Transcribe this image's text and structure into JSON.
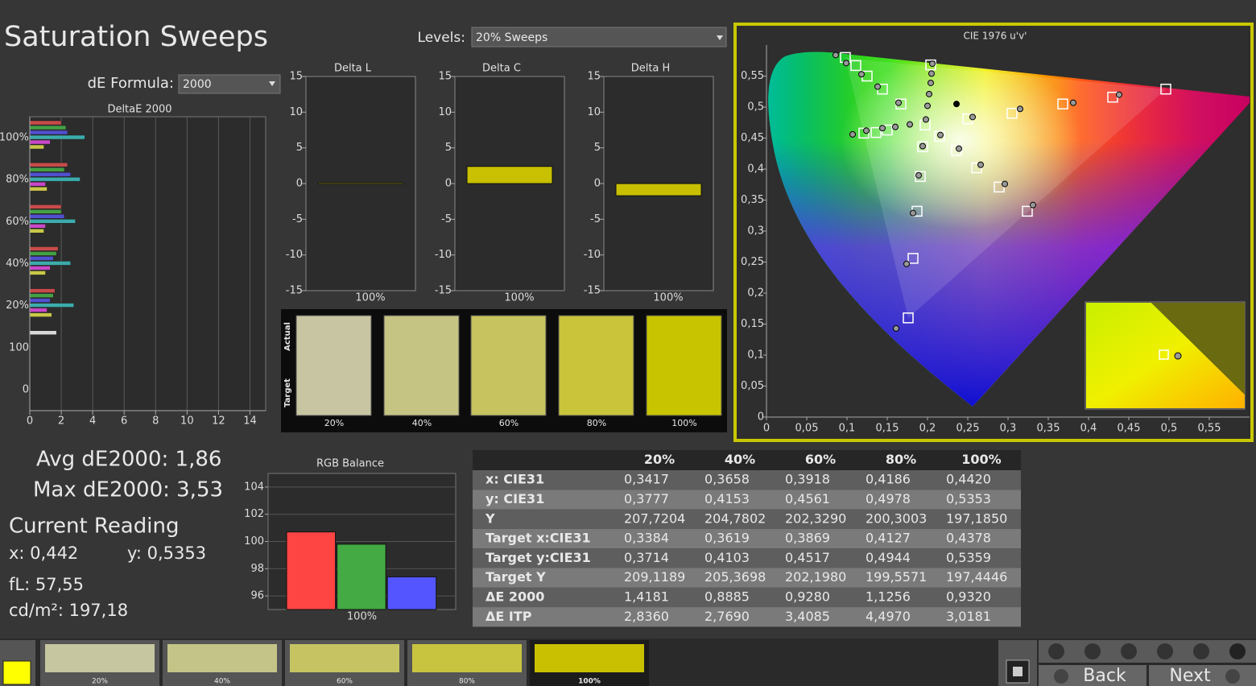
{
  "title": "Saturation Sweeps",
  "levels": {
    "label": "Levels:",
    "value": "20% Sweeps"
  },
  "de_formula": {
    "label": "dE Formula:",
    "value": "2000"
  },
  "readings": {
    "avg": "Avg dE2000: 1,86",
    "max": "Max dE2000: 3,53",
    "heading": "Current Reading",
    "x": "x: 0,442",
    "y": "y: 0,5353",
    "fl": "fL: 57,55",
    "cdm2": "cd/m²: 197,18"
  },
  "swatches": {
    "actual_label": "Actual",
    "target_label": "Target",
    "items": [
      {
        "label": "20%",
        "color": "#c8c6a2"
      },
      {
        "label": "40%",
        "color": "#c6c482"
      },
      {
        "label": "60%",
        "color": "#c7c35e"
      },
      {
        "label": "80%",
        "color": "#c9c43a"
      },
      {
        "label": "100%",
        "color": "#c9c400"
      }
    ]
  },
  "table": {
    "columns": [
      "20%",
      "40%",
      "60%",
      "80%",
      "100%"
    ],
    "rows": [
      {
        "label": "x: CIE31",
        "values": [
          "0,3417",
          "0,3658",
          "0,3918",
          "0,4186",
          "0,4420"
        ]
      },
      {
        "label": "y: CIE31",
        "values": [
          "0,3777",
          "0,4153",
          "0,4561",
          "0,4978",
          "0,5353"
        ]
      },
      {
        "label": "Y",
        "values": [
          "207,7204",
          "204,7802",
          "202,3290",
          "200,3003",
          "197,1850"
        ]
      },
      {
        "label": "Target x:CIE31",
        "values": [
          "0,3384",
          "0,3619",
          "0,3869",
          "0,4127",
          "0,4378"
        ]
      },
      {
        "label": "Target y:CIE31",
        "values": [
          "0,3714",
          "0,4103",
          "0,4517",
          "0,4944",
          "0,5359"
        ]
      },
      {
        "label": "Target Y",
        "values": [
          "209,1189",
          "205,3698",
          "202,1980",
          "199,5571",
          "197,4446"
        ]
      },
      {
        "label": "ΔE 2000",
        "values": [
          "1,4181",
          "0,8885",
          "0,9280",
          "1,1256",
          "0,9320"
        ]
      },
      {
        "label": "ΔE ITP",
        "values": [
          "2,8360",
          "2,7690",
          "3,4085",
          "4,4970",
          "3,0181"
        ]
      }
    ]
  },
  "tabs": [
    {
      "label": "20%",
      "color": "#c6c6a0"
    },
    {
      "label": "40%",
      "color": "#c5c488"
    },
    {
      "label": "60%",
      "color": "#c6c462"
    },
    {
      "label": "80%",
      "color": "#c8c440"
    },
    {
      "label": "100%",
      "color": "#c8c000"
    }
  ],
  "buttons": {
    "back": "Back",
    "next": "Next"
  },
  "chart_data": [
    {
      "type": "hbar",
      "title": "DeltaE 2000",
      "categories": [
        "100%",
        "80%",
        "60%",
        "40%",
        "20%",
        "100",
        "0"
      ],
      "series": [
        {
          "color": "#c84a4a",
          "values": [
            2.0,
            2.4,
            2.0,
            1.8,
            1.6,
            null,
            null
          ]
        },
        {
          "color": "#44a044",
          "values": [
            2.3,
            2.2,
            2.0,
            1.7,
            1.5,
            null,
            null
          ]
        },
        {
          "color": "#5050d0",
          "values": [
            2.4,
            2.6,
            2.2,
            1.5,
            1.3,
            null,
            null
          ]
        },
        {
          "color": "#3cacac",
          "values": [
            3.5,
            3.2,
            2.9,
            2.6,
            2.8,
            null,
            null
          ]
        },
        {
          "color": "#c848c8",
          "values": [
            1.3,
            1.0,
            1.0,
            1.3,
            1.1,
            null,
            null
          ]
        },
        {
          "color": "#c8c848",
          "values": [
            0.9,
            1.1,
            0.9,
            1.0,
            1.4,
            null,
            null
          ]
        },
        {
          "color": "#d8d8d8",
          "values": [
            null,
            null,
            null,
            null,
            null,
            1.7,
            null
          ]
        }
      ],
      "xlim": [
        0,
        15
      ],
      "xticks": [
        0,
        2,
        4,
        6,
        8,
        10,
        12,
        14
      ],
      "grid": true
    },
    {
      "type": "bar",
      "title": "Delta L",
      "categories": [
        "100%"
      ],
      "values": [
        0
      ],
      "color": "#c8c000",
      "ylim": [
        -15,
        15
      ],
      "yticks": [
        15,
        10,
        5,
        0,
        -5,
        -10,
        -15
      ]
    },
    {
      "type": "bar",
      "title": "Delta C",
      "categories": [
        "100%"
      ],
      "values": [
        2.4
      ],
      "color": "#c8c000",
      "ylim": [
        -15,
        15
      ],
      "yticks": [
        15,
        10,
        5,
        0,
        -5,
        -10,
        -15
      ]
    },
    {
      "type": "bar",
      "title": "Delta H",
      "categories": [
        "100%"
      ],
      "values": [
        -1.7
      ],
      "color": "#c8c000",
      "ylim": [
        -15,
        15
      ],
      "yticks": [
        15,
        10,
        5,
        0,
        -5,
        -10,
        -15
      ]
    },
    {
      "type": "groupbar",
      "title": "RGB Balance",
      "categories": [
        "100%"
      ],
      "series": [
        {
          "color": "#ff4444",
          "values": [
            100.7
          ]
        },
        {
          "color": "#44aa44",
          "values": [
            99.8
          ]
        },
        {
          "color": "#5555ff",
          "values": [
            97.4
          ]
        }
      ],
      "ylim": [
        95,
        105
      ],
      "yticks": [
        96,
        98,
        100,
        102,
        104
      ],
      "grid": true
    },
    {
      "type": "scatter",
      "title": "CIE 1976 u'v'",
      "xlim": [
        0,
        0.6
      ],
      "ylim": [
        0,
        0.6
      ],
      "xticks": [
        0,
        {
          "value": 0.05,
          "label": "0,05"
        },
        {
          "value": 0.1,
          "label": "0,1"
        },
        {
          "value": 0.15,
          "label": "0,15"
        },
        {
          "value": 0.2,
          "label": "0,2"
        },
        {
          "value": 0.25,
          "label": "0,25"
        },
        {
          "value": 0.3,
          "label": "0,3"
        },
        {
          "value": 0.35,
          "label": "0,35"
        },
        {
          "value": 0.4,
          "label": "0,4"
        },
        {
          "value": 0.45,
          "label": "0,45"
        },
        {
          "value": 0.5,
          "label": "0,5"
        },
        {
          "value": 0.55,
          "label": "0,55"
        }
      ],
      "yticks": [
        0,
        {
          "value": 0.05,
          "label": "0,05"
        },
        {
          "value": 0.1,
          "label": "0,1"
        },
        {
          "value": 0.15,
          "label": "0,15"
        },
        {
          "value": 0.2,
          "label": "0,2"
        },
        {
          "value": 0.25,
          "label": "0,25"
        },
        {
          "value": 0.3,
          "label": "0,3"
        },
        {
          "value": 0.35,
          "label": "0,35"
        },
        {
          "value": 0.4,
          "label": "0,4"
        },
        {
          "value": 0.45,
          "label": "0,45"
        },
        {
          "value": 0.5,
          "label": "0,5"
        },
        {
          "value": 0.55,
          "label": "0,55"
        }
      ],
      "targets": {
        "x": [
          0.098,
          0.111,
          0.125,
          0.144,
          0.167,
          0.496,
          0.43,
          0.368,
          0.305,
          0.25,
          0.204,
          0.197,
          0.121,
          0.136,
          0.15,
          0.215,
          0.236,
          0.261,
          0.289,
          0.324,
          0.194,
          0.191,
          0.187,
          0.182,
          0.176
        ],
        "y": [
          0.58,
          0.567,
          0.55,
          0.529,
          0.505,
          0.529,
          0.516,
          0.505,
          0.49,
          0.481,
          0.568,
          0.471,
          0.458,
          0.459,
          0.463,
          0.453,
          0.43,
          0.402,
          0.371,
          0.332,
          0.436,
          0.388,
          0.332,
          0.256,
          0.16
        ]
      },
      "measured": {
        "x": [
          0.086,
          0.099,
          0.118,
          0.138,
          0.164,
          0.206,
          0.205,
          0.204,
          0.202,
          0.2,
          0.198,
          0.438,
          0.381,
          0.315,
          0.256,
          0.107,
          0.124,
          0.144,
          0.16,
          0.178,
          0.216,
          0.239,
          0.266,
          0.296,
          0.331,
          0.194,
          0.189,
          0.182,
          0.174,
          0.161
        ],
        "y": [
          0.584,
          0.571,
          0.553,
          0.533,
          0.507,
          0.57,
          0.554,
          0.539,
          0.521,
          0.502,
          0.48,
          0.52,
          0.507,
          0.497,
          0.484,
          0.456,
          0.462,
          0.466,
          0.468,
          0.472,
          0.455,
          0.433,
          0.407,
          0.376,
          0.342,
          0.437,
          0.39,
          0.329,
          0.247,
          0.143
        ]
      },
      "current": {
        "x": [
          0.236
        ],
        "y": [
          0.505
        ]
      }
    }
  ]
}
